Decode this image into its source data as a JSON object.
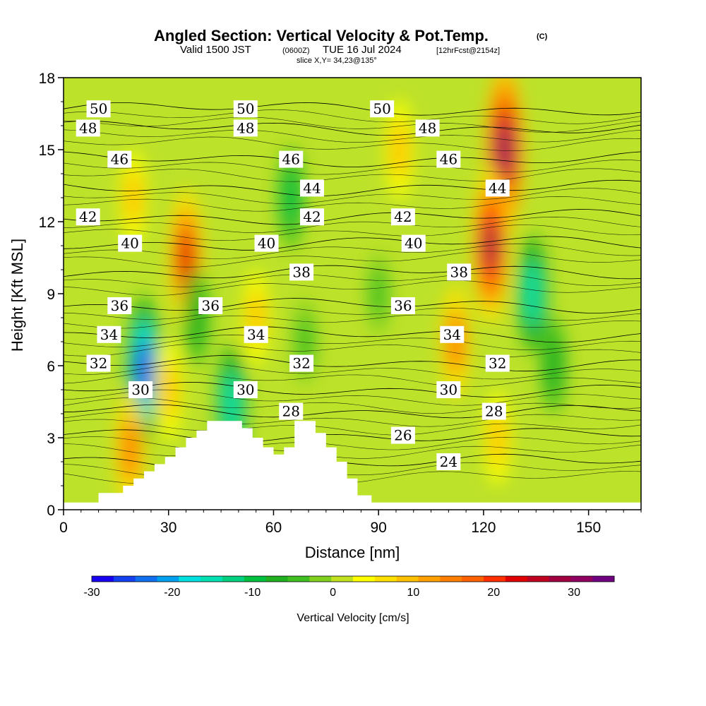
{
  "header": {
    "title": "Angled Section: Vertical Velocity & Pot.Temp.",
    "copyright": "(C)",
    "valid_prefix": "Valid 1500 JST",
    "valid_utc": "(0600Z)",
    "valid_date": "TUE 16 Jul 2024",
    "forecast": "[12hrFcst@2154z]",
    "slice": "slice X,Y= 34,23@135°"
  },
  "chart_data": {
    "type": "heatmap",
    "title": "Angled Section: Vertical Velocity & Pot.Temp.",
    "xlabel": "Distance [nm]",
    "ylabel": "Height [Kft MSL]",
    "xlim": [
      0,
      165
    ],
    "ylim": [
      0,
      18
    ],
    "x_ticks": [
      "0",
      "30",
      "60",
      "90",
      "120",
      "150"
    ],
    "y_ticks": [
      "0",
      "3",
      "6",
      "9",
      "12",
      "15",
      "18"
    ],
    "colorbar": {
      "label": "Vertical Velocity [cm/s]",
      "range": [
        -30,
        35
      ],
      "tick_labels": [
        "-30",
        "-20",
        "-10",
        "0",
        "10",
        "20",
        "30"
      ],
      "colors": [
        "#1800f0",
        "#1440f0",
        "#1070f0",
        "#00a0f0",
        "#00e0e0",
        "#00e0b0",
        "#00d080",
        "#00c040",
        "#20b020",
        "#40c020",
        "#80d020",
        "#c0e020",
        "#ffff00",
        "#ffe000",
        "#ffc000",
        "#ffa000",
        "#ff8000",
        "#ff6000",
        "#ff3000",
        "#e00000",
        "#c00020",
        "#a00040",
        "#900060",
        "#700080"
      ]
    },
    "terrain": [
      [
        0,
        0.3
      ],
      [
        10,
        0.3
      ],
      [
        10,
        0.7
      ],
      [
        17,
        0.7
      ],
      [
        17,
        1
      ],
      [
        20,
        1
      ],
      [
        20,
        1.3
      ],
      [
        23,
        1.3
      ],
      [
        23,
        1.6
      ],
      [
        26,
        1.6
      ],
      [
        26,
        1.9
      ],
      [
        29,
        1.9
      ],
      [
        29,
        2.2
      ],
      [
        32,
        2.2
      ],
      [
        32,
        2.6
      ],
      [
        35,
        2.6
      ],
      [
        35,
        3
      ],
      [
        38,
        3
      ],
      [
        38,
        3.3
      ],
      [
        41,
        3.3
      ],
      [
        41,
        3.7
      ],
      [
        51,
        3.7
      ],
      [
        51,
        3.4
      ],
      [
        54,
        3.4
      ],
      [
        54,
        3
      ],
      [
        57,
        3
      ],
      [
        57,
        2.6
      ],
      [
        60,
        2.6
      ],
      [
        60,
        2.3
      ],
      [
        63,
        2.3
      ],
      [
        63,
        2.6
      ],
      [
        66,
        2.6
      ],
      [
        66,
        3.7
      ],
      [
        72,
        3.7
      ],
      [
        72,
        3.2
      ],
      [
        75,
        3.2
      ],
      [
        75,
        2.6
      ],
      [
        78,
        2.6
      ],
      [
        78,
        2
      ],
      [
        81,
        2
      ],
      [
        81,
        1.3
      ],
      [
        84,
        1.3
      ],
      [
        84,
        0.6
      ],
      [
        88,
        0.6
      ],
      [
        88,
        0.3
      ],
      [
        165,
        0.3
      ]
    ],
    "vertical_velocity_features": [
      {
        "x": 23,
        "y": 5.8,
        "value": -25
      },
      {
        "x": 19,
        "y": 2.5,
        "value": 15
      },
      {
        "x": 35,
        "y": 10.5,
        "value": 22
      },
      {
        "x": 38,
        "y": 8,
        "value": -8
      },
      {
        "x": 20,
        "y": 13,
        "value": 8
      },
      {
        "x": 48,
        "y": 4.4,
        "value": -15
      },
      {
        "x": 30,
        "y": 5,
        "value": 10
      },
      {
        "x": 55,
        "y": 8,
        "value": 8
      },
      {
        "x": 65,
        "y": 13,
        "value": -10
      },
      {
        "x": 69,
        "y": 7,
        "value": -5
      },
      {
        "x": 96,
        "y": 15,
        "value": 10
      },
      {
        "x": 112,
        "y": 7,
        "value": 14
      },
      {
        "x": 126,
        "y": 15,
        "value": 32
      },
      {
        "x": 122,
        "y": 11,
        "value": 28
      },
      {
        "x": 134,
        "y": 9,
        "value": -15
      },
      {
        "x": 140,
        "y": 6,
        "value": -8
      },
      {
        "x": 124,
        "y": 3,
        "value": 8
      },
      {
        "x": 90,
        "y": 9,
        "value": -4
      }
    ],
    "potential_temperature_contours": [
      {
        "value": 50,
        "y": 16.7,
        "labels": [
          {
            "x": 10,
            "text": "50"
          },
          {
            "x": 52,
            "text": "50"
          },
          {
            "x": 91,
            "text": "50"
          }
        ]
      },
      {
        "value": 48,
        "y": 15.9,
        "labels": [
          {
            "x": 7,
            "text": "48"
          },
          {
            "x": 52,
            "text": "48"
          },
          {
            "x": 104,
            "text": "48"
          }
        ]
      },
      {
        "value": 46,
        "y": 14.6,
        "labels": [
          {
            "x": 16,
            "text": "46"
          },
          {
            "x": 65,
            "text": "46"
          },
          {
            "x": 110,
            "text": "46"
          }
        ]
      },
      {
        "value": 44,
        "y": 13.4,
        "labels": [
          {
            "x": 71,
            "text": "44"
          },
          {
            "x": 124,
            "text": "44"
          }
        ]
      },
      {
        "value": 42,
        "y": 12.2,
        "labels": [
          {
            "x": 7,
            "text": "42"
          },
          {
            "x": 71,
            "text": "42"
          },
          {
            "x": 97,
            "text": "42"
          }
        ]
      },
      {
        "value": 40,
        "y": 11.1,
        "labels": [
          {
            "x": 19,
            "text": "40"
          },
          {
            "x": 58,
            "text": "40"
          },
          {
            "x": 100,
            "text": "40"
          }
        ]
      },
      {
        "value": 38,
        "y": 9.9,
        "labels": [
          {
            "x": 68,
            "text": "38"
          },
          {
            "x": 113,
            "text": "38"
          }
        ]
      },
      {
        "value": 36,
        "y": 8.5,
        "labels": [
          {
            "x": 16,
            "text": "36"
          },
          {
            "x": 42,
            "text": "36"
          },
          {
            "x": 97,
            "text": "36"
          }
        ]
      },
      {
        "value": 34,
        "y": 7.3,
        "labels": [
          {
            "x": 13,
            "text": "34"
          },
          {
            "x": 55,
            "text": "34"
          },
          {
            "x": 111,
            "text": "34"
          }
        ]
      },
      {
        "value": 32,
        "y": 6.1,
        "labels": [
          {
            "x": 10,
            "text": "32"
          },
          {
            "x": 68,
            "text": "32"
          },
          {
            "x": 124,
            "text": "32"
          }
        ]
      },
      {
        "value": 30,
        "y": 5.0,
        "labels": [
          {
            "x": 52,
            "text": "30"
          },
          {
            "x": 110,
            "text": "30"
          },
          {
            "x": 22,
            "text": "30"
          }
        ]
      },
      {
        "value": 28,
        "y": 4.1,
        "labels": [
          {
            "x": 65,
            "text": "28"
          },
          {
            "x": 123,
            "text": "28"
          }
        ]
      },
      {
        "value": 26,
        "y": 3.1,
        "labels": [
          {
            "x": 97,
            "text": "26"
          }
        ]
      },
      {
        "value": 24,
        "y": 2.0,
        "labels": [
          {
            "x": 110,
            "text": "24"
          }
        ]
      }
    ]
  }
}
